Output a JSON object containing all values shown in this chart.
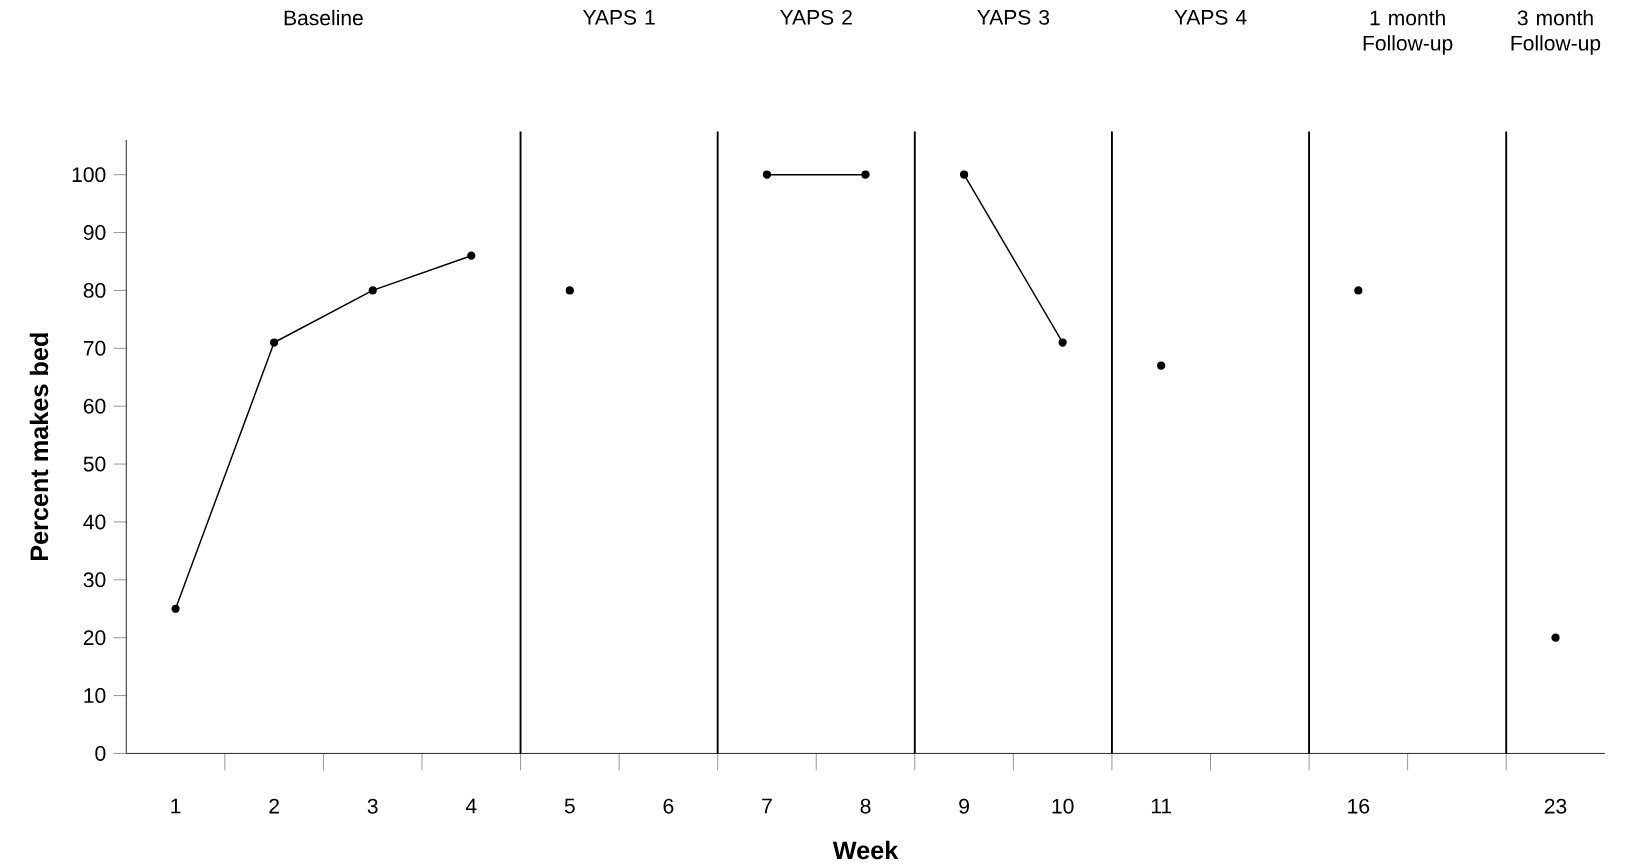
{
  "chart_data": {
    "type": "line",
    "xlabel": "Week",
    "ylabel": "Percent makes bed",
    "categories": [
      "1",
      "2",
      "3",
      "4",
      "5",
      "6",
      "7",
      "8",
      "9",
      "10",
      "11",
      null,
      "16",
      null,
      "23"
    ],
    "series": [
      {
        "color": "#000000",
        "values": [
          25,
          71,
          80,
          86,
          null,
          null,
          null,
          null,
          null,
          null,
          null,
          null,
          null,
          null,
          null
        ]
      },
      {
        "color": "#000000",
        "values": [
          null,
          null,
          null,
          null,
          80,
          null,
          null,
          null,
          null,
          null,
          null,
          null,
          null,
          null,
          null
        ]
      },
      {
        "color": "#000000",
        "values": [
          null,
          null,
          null,
          null,
          null,
          null,
          100,
          100,
          null,
          null,
          null,
          null,
          null,
          null,
          null
        ]
      },
      {
        "color": "#000000",
        "values": [
          null,
          null,
          null,
          null,
          null,
          null,
          null,
          null,
          100,
          71,
          null,
          null,
          null,
          null,
          null
        ]
      },
      {
        "color": "#000000",
        "values": [
          null,
          null,
          null,
          null,
          null,
          null,
          null,
          null,
          null,
          null,
          67,
          null,
          null,
          null,
          null
        ]
      },
      {
        "color": "#000000",
        "values": [
          null,
          null,
          null,
          null,
          null,
          null,
          null,
          null,
          null,
          null,
          null,
          null,
          80,
          null,
          null
        ]
      },
      {
        "color": "#000000",
        "values": [
          null,
          null,
          null,
          null,
          null,
          null,
          null,
          null,
          null,
          null,
          null,
          null,
          null,
          null,
          20
        ]
      }
    ],
    "ylim": [
      0,
      106
    ],
    "yticks": [
      0,
      10,
      20,
      30,
      40,
      50,
      60,
      70,
      80,
      90,
      100
    ],
    "annotations": [
      "Baseline",
      "YAPS 1",
      "YAPS 2",
      "YAPS 3",
      "YAPS 4",
      "1 month Follow-up",
      "3 month Follow-up"
    ],
    "marker": "circle",
    "line_style": "solid",
    "grid": false
  }
}
